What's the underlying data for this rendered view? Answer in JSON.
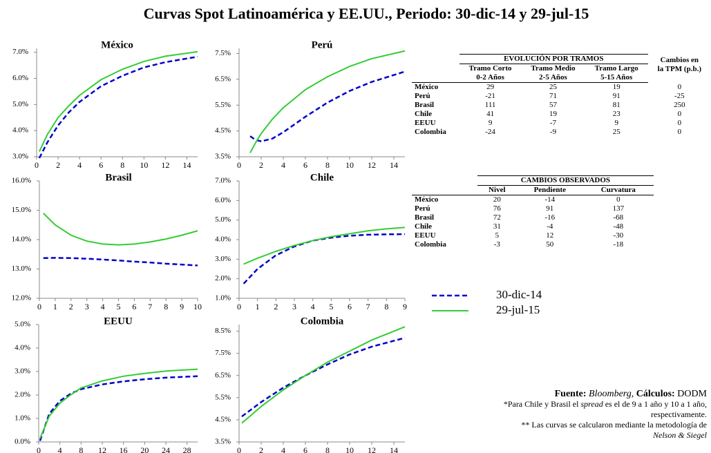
{
  "title": "Curvas Spot Latinoamérica y EE.UU., Periodo: 30-dic-14 y 29-jul-15",
  "chart_data": [
    {
      "type": "line",
      "title": "México",
      "xlim": [
        0,
        15
      ],
      "xticks": [
        0,
        2,
        4,
        6,
        8,
        10,
        12,
        14
      ],
      "ylim": [
        3,
        7.15
      ],
      "yticks": [
        {
          "value": 3,
          "label": "3.0%"
        },
        {
          "value": 4,
          "label": "4.0%"
        },
        {
          "value": 5,
          "label": "5.0%"
        },
        {
          "value": 6,
          "label": "6.0%"
        },
        {
          "value": 7,
          "label": "7.0%"
        }
      ],
      "x": [
        0.25,
        1,
        2,
        3,
        4,
        6,
        8,
        10,
        12,
        15
      ],
      "series": [
        {
          "name": "30-dic-14",
          "color": "#0000cc",
          "values": [
            2.95,
            3.55,
            4.2,
            4.7,
            5.1,
            5.7,
            6.1,
            6.42,
            6.62,
            6.83
          ]
        },
        {
          "name": "29-jul-15",
          "color": "#33cc33",
          "values": [
            3.2,
            3.85,
            4.5,
            4.95,
            5.35,
            5.95,
            6.35,
            6.65,
            6.85,
            7.02
          ]
        }
      ]
    },
    {
      "type": "line",
      "title": "Perú",
      "xlim": [
        0,
        15
      ],
      "xticks": [
        0,
        2,
        4,
        6,
        8,
        10,
        12,
        14
      ],
      "ylim": [
        3.5,
        7.7
      ],
      "yticks": [
        {
          "value": 3.5,
          "label": "3.5%"
        },
        {
          "value": 4.5,
          "label": "4.5%"
        },
        {
          "value": 5.5,
          "label": "5.5%"
        },
        {
          "value": 6.5,
          "label": "6.5%"
        },
        {
          "value": 7.5,
          "label": "7.5%"
        }
      ],
      "x": [
        1,
        1.5,
        2,
        3,
        4,
        6,
        8,
        10,
        12,
        15
      ],
      "series": [
        {
          "color": "#0000cc",
          "values": [
            4.3,
            4.15,
            4.1,
            4.2,
            4.45,
            5.05,
            5.6,
            6.05,
            6.4,
            6.8
          ]
        },
        {
          "color": "#33cc33",
          "values": [
            3.65,
            4.05,
            4.4,
            4.95,
            5.4,
            6.1,
            6.6,
            7.0,
            7.3,
            7.6
          ]
        }
      ]
    },
    {
      "type": "line",
      "title": "Brasil",
      "xlim": [
        0,
        10
      ],
      "xticks": [
        0,
        1,
        2,
        3,
        4,
        5,
        6,
        7,
        8,
        9,
        10
      ],
      "ylim": [
        12,
        16
      ],
      "yticks": [
        {
          "value": 12,
          "label": "12.0%"
        },
        {
          "value": 13,
          "label": "13.0%"
        },
        {
          "value": 14,
          "label": "14.0%"
        },
        {
          "value": 15,
          "label": "15.0%"
        },
        {
          "value": 16,
          "label": "16.0%"
        }
      ],
      "x": [
        0.25,
        1,
        2,
        3,
        4,
        5,
        6,
        7,
        8,
        9,
        10
      ],
      "series": [
        {
          "color": "#0000cc",
          "values": [
            13.37,
            13.38,
            13.37,
            13.35,
            13.32,
            13.29,
            13.25,
            13.22,
            13.18,
            13.15,
            13.12
          ]
        },
        {
          "color": "#33cc33",
          "values": [
            14.9,
            14.5,
            14.15,
            13.95,
            13.85,
            13.82,
            13.85,
            13.92,
            14.02,
            14.15,
            14.3
          ]
        }
      ]
    },
    {
      "type": "line",
      "title": "Chile",
      "xlim": [
        0,
        9
      ],
      "xticks": [
        0,
        1,
        2,
        3,
        4,
        5,
        6,
        7,
        8,
        9
      ],
      "ylim": [
        1,
        7
      ],
      "yticks": [
        {
          "value": 1,
          "label": "1.0%"
        },
        {
          "value": 2,
          "label": "2.0%"
        },
        {
          "value": 3,
          "label": "3.0%"
        },
        {
          "value": 4,
          "label": "4.0%"
        },
        {
          "value": 5,
          "label": "5.0%"
        },
        {
          "value": 6,
          "label": "6.0%"
        },
        {
          "value": 7,
          "label": "7.0%"
        }
      ],
      "x": [
        0.25,
        1,
        2,
        3,
        4,
        5,
        6,
        7,
        8,
        9
      ],
      "series": [
        {
          "color": "#0000cc",
          "values": [
            1.75,
            2.5,
            3.2,
            3.65,
            3.95,
            4.1,
            4.2,
            4.25,
            4.27,
            4.28
          ]
        },
        {
          "color": "#33cc33",
          "values": [
            2.75,
            3.05,
            3.4,
            3.7,
            3.95,
            4.15,
            4.3,
            4.45,
            4.55,
            4.62
          ]
        }
      ]
    },
    {
      "type": "line",
      "title": "EEUU",
      "xlim": [
        0,
        30
      ],
      "xticks": [
        0,
        4,
        8,
        12,
        16,
        20,
        24,
        28
      ],
      "ylim": [
        0,
        5
      ],
      "yticks": [
        {
          "value": 0,
          "label": "0.0%"
        },
        {
          "value": 1,
          "label": "1.0%"
        },
        {
          "value": 2,
          "label": "2.0%"
        },
        {
          "value": 3,
          "label": "3.0%"
        },
        {
          "value": 4,
          "label": "4.0%"
        },
        {
          "value": 5,
          "label": "5.0%"
        }
      ],
      "x": [
        0.25,
        2,
        4,
        6,
        8,
        12,
        16,
        20,
        24,
        30
      ],
      "series": [
        {
          "color": "#0000cc",
          "values": [
            0.05,
            1.2,
            1.75,
            2.05,
            2.25,
            2.45,
            2.58,
            2.67,
            2.74,
            2.8
          ]
        },
        {
          "color": "#33cc33",
          "values": [
            0.15,
            1.1,
            1.65,
            2.0,
            2.3,
            2.6,
            2.8,
            2.92,
            3.02,
            3.1
          ]
        }
      ]
    },
    {
      "type": "line",
      "title": "Colombia",
      "xlim": [
        0,
        15
      ],
      "xticks": [
        0,
        2,
        4,
        6,
        8,
        10,
        12,
        14
      ],
      "ylim": [
        3.5,
        8.8
      ],
      "yticks": [
        {
          "value": 3.5,
          "label": "3.5%"
        },
        {
          "value": 4.5,
          "label": "4.5%"
        },
        {
          "value": 5.5,
          "label": "5.5%"
        },
        {
          "value": 6.5,
          "label": "6.5%"
        },
        {
          "value": 7.5,
          "label": "7.5%"
        },
        {
          "value": 8.5,
          "label": "8.5%"
        }
      ],
      "x": [
        0.25,
        2,
        4,
        6,
        8,
        10,
        12,
        15
      ],
      "series": [
        {
          "color": "#0000cc",
          "values": [
            4.65,
            5.3,
            5.95,
            6.5,
            7.0,
            7.45,
            7.8,
            8.2
          ]
        },
        {
          "color": "#33cc33",
          "values": [
            4.35,
            5.1,
            5.85,
            6.5,
            7.1,
            7.6,
            8.1,
            8.7
          ]
        }
      ]
    }
  ],
  "tables": [
    {
      "group": "EVOLUCIÓN POR TRAMOS",
      "columns": [
        [
          "Tramo Corto",
          "0-2 Años"
        ],
        [
          "Tramo Medio",
          "2-5 Años"
        ],
        [
          "Tramo Largo",
          "5-15 Años"
        ],
        [
          "Cambios en",
          "la TPM (p.b.)"
        ]
      ],
      "rows": [
        [
          "México",
          29,
          25,
          19,
          0
        ],
        [
          "Perú",
          -21,
          71,
          91,
          -25
        ],
        [
          "Brasil",
          111,
          57,
          81,
          250
        ],
        [
          "Chile",
          41,
          19,
          23,
          0
        ],
        [
          "EEUU",
          9,
          -7,
          9,
          0
        ],
        [
          "Colombia",
          -24,
          -9,
          25,
          0
        ]
      ]
    },
    {
      "group": "CAMBIOS OBSERVADOS",
      "columns": [
        [
          "Nivel"
        ],
        [
          "Pendiente"
        ],
        [
          "Curvatura"
        ]
      ],
      "rows": [
        [
          "México",
          20,
          -14,
          0
        ],
        [
          "Perú",
          76,
          91,
          137
        ],
        [
          "Brasil",
          72,
          -16,
          -68
        ],
        [
          "Chile",
          31,
          -4,
          -48
        ],
        [
          "EEUU",
          5,
          12,
          -30
        ],
        [
          "Colombia",
          -3,
          50,
          -18
        ]
      ]
    }
  ],
  "notes": {
    "source": [
      "Fuente:",
      "Bloomberg",
      ", ",
      "Cálculos:",
      "DODM"
    ],
    "note1": [
      "*Para Chile y Brasil el",
      "spread",
      "es el de 9 a 1 año y 10 a 1 año,",
      "respectivamente."
    ],
    "note2": [
      "** Las curvas se calcularon mediante la metodología de",
      "Nelson & Siegel"
    ]
  }
}
